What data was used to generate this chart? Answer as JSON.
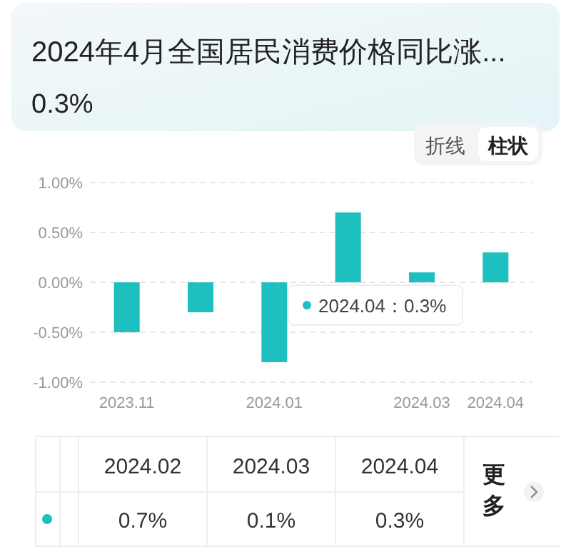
{
  "chart_data": {
    "type": "bar",
    "title": "2024年4月全国居民消费价格同比涨...",
    "subtitle": "0.3%",
    "categories": [
      "2023.11",
      null,
      "2024.01",
      null,
      "2024.03",
      "2024.04"
    ],
    "values": [
      -0.5,
      -0.3,
      -0.8,
      0.7,
      0.1,
      0.3
    ],
    "color": "#1ebfbf",
    "ylim": [
      -1,
      1
    ],
    "yticks": [
      {
        "value": -1,
        "label": "-1.00%"
      },
      {
        "value": -0.5,
        "label": "-0.50%"
      },
      {
        "value": 0,
        "label": "0.00%"
      },
      {
        "value": 0.5,
        "label": "0.50%"
      },
      {
        "value": 1,
        "label": "1.00%"
      }
    ],
    "grid": "y",
    "annotations": [
      "折线",
      "柱状",
      "2024.04：0.3%",
      "2024.02",
      "2024.03",
      "2024.04",
      "0.7%",
      "0.1%",
      "0.3%",
      "更多"
    ]
  }
}
